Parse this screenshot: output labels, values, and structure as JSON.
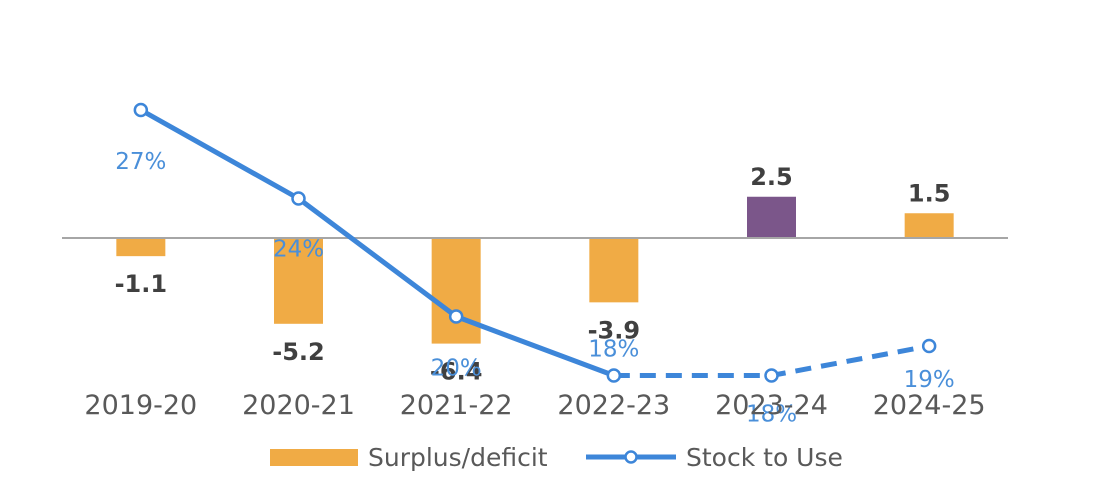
{
  "chart_data": {
    "type": "bar",
    "categories": [
      "2019-20",
      "2020-21",
      "2021-22",
      "2022-23",
      "2023-24",
      "2024-25"
    ],
    "series": [
      {
        "name": "Surplus/deficit",
        "type": "bar",
        "values": [
          -1.1,
          -5.2,
          -6.4,
          -3.9,
          2.5,
          1.5
        ],
        "labels": [
          "-1.1",
          "-5.2",
          "-6.4",
          "-3.9",
          "2.5",
          "1.5"
        ]
      },
      {
        "name": "Stock to Use",
        "type": "line",
        "values": [
          0.27,
          0.24,
          0.2,
          0.18,
          0.18,
          0.19
        ],
        "labels": [
          "27%",
          "24%",
          "20%",
          "18%",
          "18%",
          "19%"
        ],
        "dashed_from_index": 3
      }
    ],
    "title": "",
    "xlabel": "",
    "ylabel": "",
    "legend_position": "bottom",
    "grid": false
  },
  "colors": {
    "bar": "#f0ab45",
    "bar_highlight": "#7b568a",
    "line": "#3d86d9",
    "label_line": "#4a8fd9",
    "axis": "#a6a6a6"
  },
  "highlight_index": 4
}
